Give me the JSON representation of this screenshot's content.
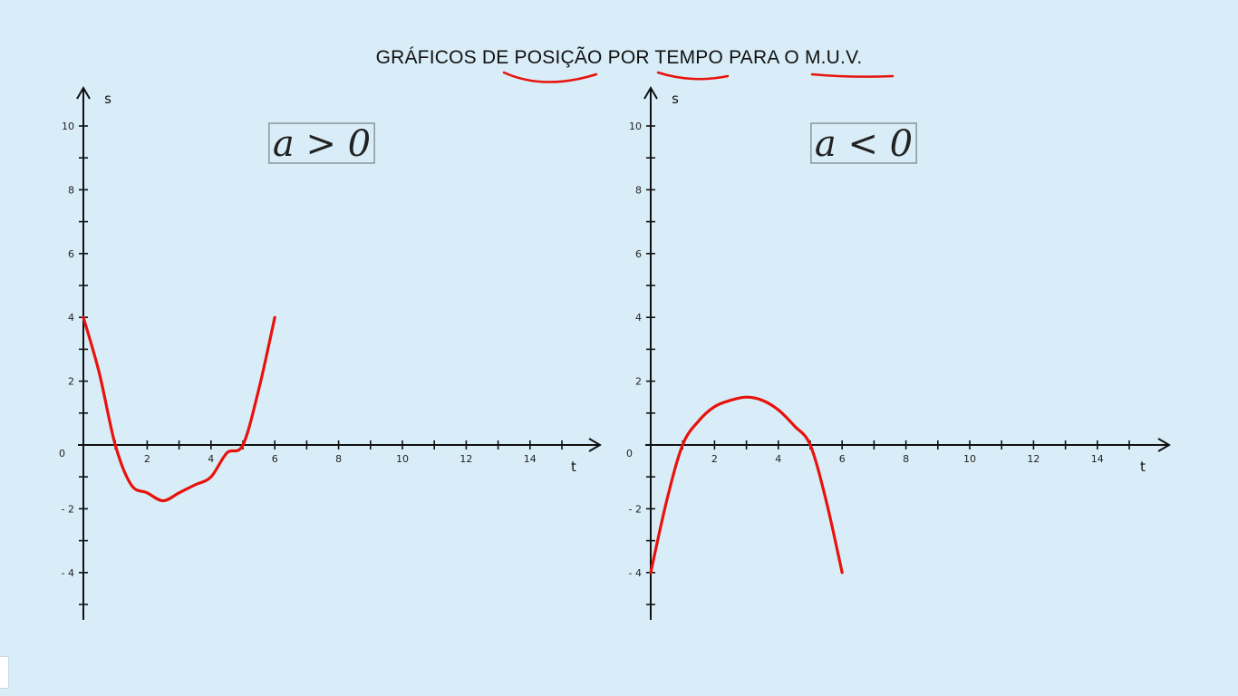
{
  "title": "GRÁFICOS DE POSIÇÃO POR TEMPO PARA O M.U.V.",
  "colors": {
    "background": "#d9edf8",
    "curve": "#e8120c",
    "axis": "#111111",
    "annotation": "#e8120c"
  },
  "annotation_underlines": [
    "POSIÇÃO",
    "TEMPO",
    "M.U.V."
  ],
  "chart_data": [
    {
      "type": "line",
      "formula": "a > 0",
      "xlabel": "t",
      "ylabel": "s",
      "origin_label": "0",
      "xlim": [
        0,
        16
      ],
      "ylim": [
        -5.5,
        11
      ],
      "x_ticks": [
        2,
        4,
        6,
        8,
        10,
        12,
        14
      ],
      "y_ticks": [
        10,
        8,
        6,
        4,
        2,
        -2,
        -4
      ],
      "grid": false,
      "series": [
        {
          "points": [
            [
              0,
              4
            ],
            [
              0.5,
              2.25
            ],
            [
              1,
              0
            ],
            [
              1.5,
              -1.25
            ],
            [
              2,
              -1.5
            ],
            [
              2.5,
              -1.75
            ],
            [
              3,
              -1.5
            ],
            [
              3.5,
              -1.25
            ],
            [
              4,
              -1
            ],
            [
              4.5,
              -0.25
            ],
            [
              5,
              0
            ],
            [
              5.5,
              1.75
            ],
            [
              6,
              4
            ]
          ]
        }
      ]
    },
    {
      "type": "line",
      "formula": "a < 0",
      "xlabel": "t",
      "ylabel": "s",
      "origin_label": "0",
      "xlim": [
        0,
        16
      ],
      "ylim": [
        -5.5,
        11
      ],
      "x_ticks": [
        2,
        4,
        6,
        8,
        10,
        12,
        14
      ],
      "y_ticks": [
        10,
        8,
        6,
        4,
        2,
        -2,
        -4
      ],
      "grid": false,
      "series": [
        {
          "points": [
            [
              0,
              -4
            ],
            [
              0.5,
              -1.75
            ],
            [
              1,
              0
            ],
            [
              1.5,
              0.75
            ],
            [
              2,
              1.2
            ],
            [
              2.5,
              1.4
            ],
            [
              3,
              1.5
            ],
            [
              3.5,
              1.4
            ],
            [
              4,
              1.1
            ],
            [
              4.5,
              0.6
            ],
            [
              5,
              0
            ],
            [
              5.5,
              -1.75
            ],
            [
              6,
              -4
            ]
          ]
        }
      ]
    }
  ]
}
